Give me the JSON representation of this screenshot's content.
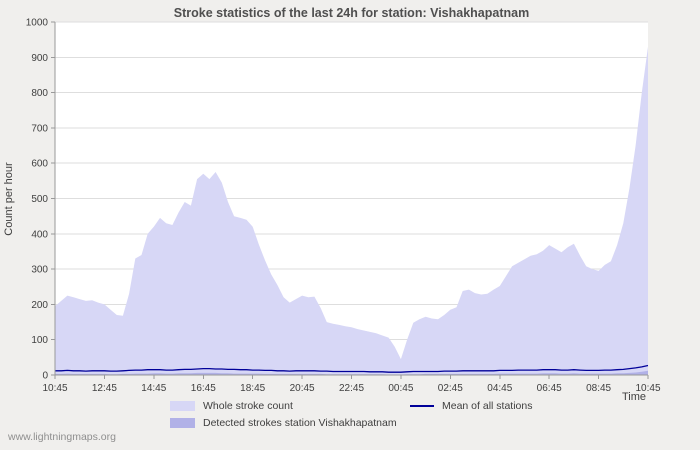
{
  "page": {
    "title": "Stroke statistics of the last 24h for station: Vishakhapatnam",
    "watermark": "www.lightningmaps.org"
  },
  "axes": {
    "y_label": "Count per hour",
    "x_label": "Time"
  },
  "colors": {
    "page_background": "#f0efed",
    "plot_background": "#ffffff",
    "grid": "#dedede",
    "axis": "#999999",
    "whole_stroke_fill": "#d7d7f6",
    "detected_fill": "#b1b1e7",
    "mean_line": "#000099"
  },
  "legend": {
    "items": [
      {
        "label": "Whole stroke count",
        "type": "area",
        "color": "#d7d7f6"
      },
      {
        "label": "Mean of all stations",
        "type": "line",
        "color": "#000099"
      },
      {
        "label": "Detected strokes station Vishakhapatnam",
        "type": "area",
        "color": "#b1b1e7"
      }
    ]
  },
  "chart_data": {
    "type": "area",
    "title": "Stroke statistics of the last 24h for station: Vishakhapatnam",
    "xlabel": "Time",
    "ylabel": "Count per hour",
    "ylim": [
      0,
      1000
    ],
    "yticks": [
      0,
      100,
      200,
      300,
      400,
      500,
      600,
      700,
      800,
      900,
      1000
    ],
    "xticks": [
      "10:45",
      "12:45",
      "14:45",
      "16:45",
      "18:45",
      "20:45",
      "22:45",
      "00:45",
      "02:45",
      "04:45",
      "06:45",
      "08:45",
      "10:45"
    ],
    "x_interval_minutes": 15,
    "grid": "horizontal",
    "legend_position": "bottom",
    "series": [
      {
        "id": "whole-stroke-count",
        "name": "Whole stroke count",
        "style": "area",
        "color": "#d7d7f6",
        "values": [
          195,
          210,
          225,
          220,
          215,
          210,
          212,
          205,
          200,
          185,
          170,
          168,
          230,
          330,
          340,
          400,
          420,
          445,
          430,
          425,
          460,
          490,
          480,
          555,
          570,
          555,
          575,
          545,
          490,
          450,
          445,
          440,
          420,
          370,
          325,
          285,
          255,
          220,
          205,
          215,
          225,
          220,
          222,
          190,
          150,
          145,
          142,
          138,
          135,
          130,
          126,
          122,
          118,
          112,
          106,
          80,
          45,
          100,
          148,
          158,
          165,
          160,
          158,
          170,
          185,
          192,
          238,
          242,
          232,
          228,
          230,
          242,
          252,
          280,
          308,
          318,
          328,
          338,
          342,
          352,
          368,
          358,
          348,
          362,
          372,
          338,
          308,
          300,
          295,
          312,
          322,
          368,
          430,
          530,
          650,
          800,
          930
        ]
      },
      {
        "id": "detected-strokes-station",
        "name": "Detected strokes station Vishakhapatnam",
        "style": "area",
        "color": "#b1b1e7",
        "values": [
          3,
          3,
          4,
          3,
          3,
          3,
          3,
          3,
          3,
          2,
          2,
          3,
          3,
          4,
          4,
          4,
          5,
          5,
          4,
          4,
          5,
          5,
          5,
          6,
          6,
          6,
          6,
          5,
          5,
          4,
          4,
          4,
          4,
          4,
          3,
          3,
          3,
          3,
          3,
          3,
          3,
          3,
          3,
          3,
          2,
          2,
          2,
          2,
          2,
          2,
          2,
          2,
          2,
          2,
          1,
          1,
          1,
          2,
          2,
          2,
          3,
          3,
          3,
          3,
          3,
          3,
          3,
          3,
          3,
          3,
          3,
          3,
          4,
          4,
          4,
          4,
          4,
          4,
          4,
          5,
          5,
          5,
          4,
          4,
          5,
          4,
          4,
          4,
          4,
          4,
          4,
          5,
          5,
          6,
          7,
          9,
          12
        ]
      },
      {
        "id": "mean-all-stations",
        "name": "Mean of all stations",
        "style": "line",
        "color": "#000099",
        "values": [
          12,
          12,
          13,
          12,
          12,
          11,
          12,
          12,
          12,
          11,
          11,
          12,
          13,
          14,
          14,
          15,
          15,
          15,
          14,
          14,
          15,
          16,
          16,
          17,
          18,
          18,
          17,
          17,
          16,
          16,
          15,
          15,
          14,
          14,
          13,
          13,
          12,
          12,
          11,
          12,
          12,
          12,
          12,
          11,
          11,
          10,
          10,
          10,
          10,
          10,
          10,
          9,
          9,
          9,
          8,
          8,
          8,
          9,
          10,
          10,
          10,
          10,
          10,
          11,
          11,
          11,
          12,
          12,
          12,
          12,
          12,
          12,
          13,
          13,
          13,
          14,
          14,
          14,
          14,
          15,
          15,
          15,
          14,
          14,
          15,
          14,
          13,
          13,
          13,
          14,
          14,
          15,
          16,
          18,
          20,
          23,
          27
        ]
      }
    ]
  }
}
